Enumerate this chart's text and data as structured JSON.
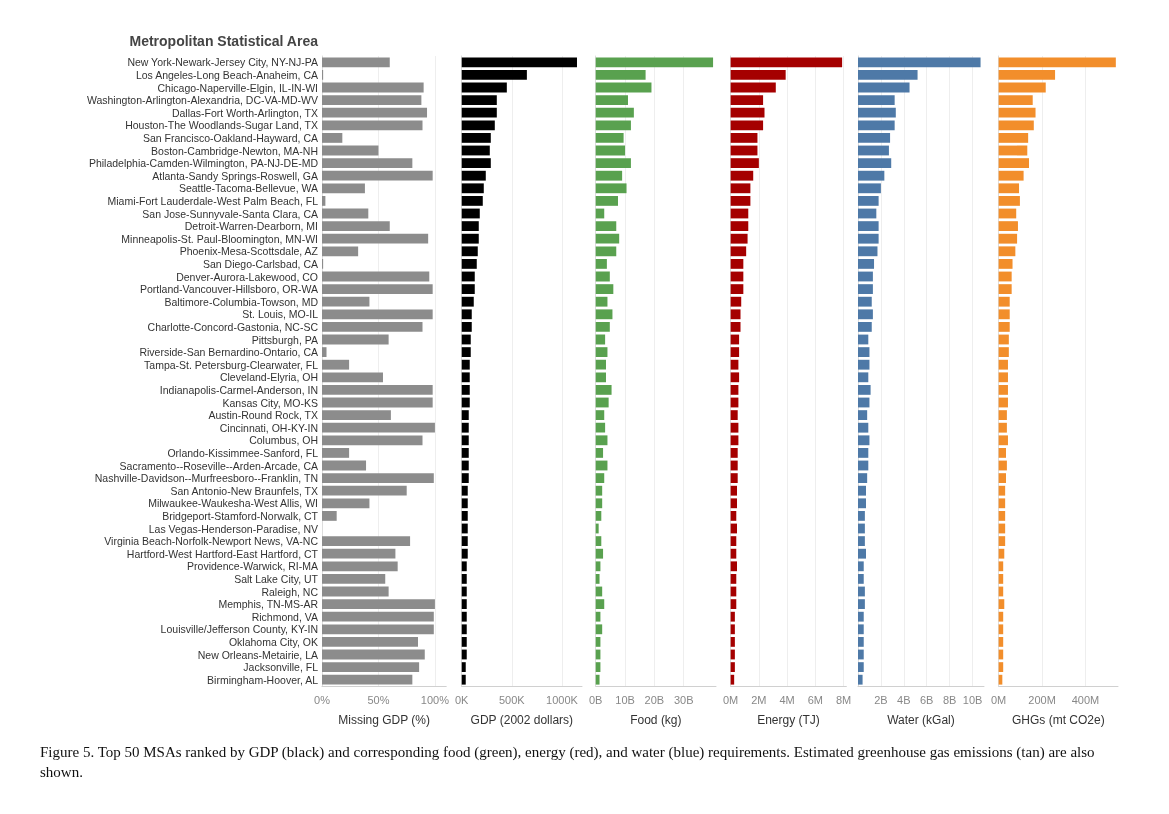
{
  "chart_data": [
    {
      "type": "bar",
      "orientation": "horizontal",
      "ylabel": "Metropolitan Statistical Area",
      "xlabel": "Missing GDP (%)",
      "color": "#8c8c8c",
      "grid": "x",
      "xlim": [
        0,
        110
      ],
      "xticks": [
        {
          "value": 0,
          "label": "0%"
        },
        {
          "value": 50,
          "label": "50%"
        },
        {
          "value": 100,
          "label": "100%"
        }
      ],
      "categories": [
        "New York-Newark-Jersey City, NY-NJ-PA",
        "Los Angeles-Long Beach-Anaheim, CA",
        "Chicago-Naperville-Elgin, IL-IN-WI",
        "Washington-Arlington-Alexandria, DC-VA-MD-WV",
        "Dallas-Fort Worth-Arlington, TX",
        "Houston-The Woodlands-Sugar Land, TX",
        "San Francisco-Oakland-Hayward, CA",
        "Boston-Cambridge-Newton, MA-NH",
        "Philadelphia-Camden-Wilmington, PA-NJ-DE-MD",
        "Atlanta-Sandy Springs-Roswell, GA",
        "Seattle-Tacoma-Bellevue, WA",
        "Miami-Fort Lauderdale-West Palm Beach, FL",
        "San Jose-Sunnyvale-Santa Clara, CA",
        "Detroit-Warren-Dearborn, MI",
        "Minneapolis-St. Paul-Bloomington, MN-WI",
        "Phoenix-Mesa-Scottsdale, AZ",
        "San Diego-Carlsbad, CA",
        "Denver-Aurora-Lakewood, CO",
        "Portland-Vancouver-Hillsboro, OR-WA",
        "Baltimore-Columbia-Towson, MD",
        "St. Louis, MO-IL",
        "Charlotte-Concord-Gastonia, NC-SC",
        "Pittsburgh, PA",
        "Riverside-San Bernardino-Ontario, CA",
        "Tampa-St. Petersburg-Clearwater, FL",
        "Cleveland-Elyria, OH",
        "Indianapolis-Carmel-Anderson, IN",
        "Kansas City, MO-KS",
        "Austin-Round Rock, TX",
        "Cincinnati, OH-KY-IN",
        "Columbus, OH",
        "Orlando-Kissimmee-Sanford, FL",
        "Sacramento--Roseville--Arden-Arcade, CA",
        "Nashville-Davidson--Murfreesboro--Franklin, TN",
        "San Antonio-New Braunfels, TX",
        "Milwaukee-Waukesha-West Allis, WI",
        "Bridgeport-Stamford-Norwalk, CT",
        "Las Vegas-Henderson-Paradise, NV",
        "Virginia Beach-Norfolk-Newport News, VA-NC",
        "Hartford-West Hartford-East Hartford, CT",
        "Providence-Warwick, RI-MA",
        "Salt Lake City, UT",
        "Raleigh, NC",
        "Memphis, TN-MS-AR",
        "Richmond, VA",
        "Louisville/Jefferson County, KY-IN",
        "Oklahoma City, OK",
        "New Orleans-Metairie, LA",
        "Jacksonville, FL",
        "Birmingham-Hoover, AL"
      ],
      "values": [
        60,
        1,
        90,
        88,
        93,
        89,
        18,
        50,
        80,
        98,
        38,
        3,
        41,
        60,
        94,
        32,
        1,
        95,
        98,
        42,
        98,
        89,
        59,
        4,
        24,
        54,
        98,
        98,
        61,
        100,
        89,
        24,
        39,
        99,
        75,
        42,
        13,
        0,
        78,
        65,
        67,
        56,
        59,
        100,
        99,
        99,
        85,
        91,
        86,
        80
      ],
      "annotations": [
        "Figure 5. Top 50 MSAs ranked by GDP (black) and corresponding food (green), energy (red), and water (blue) requirements. Estimated greenhouse gas emissions (tan) are also shown."
      ]
    },
    {
      "type": "bar",
      "orientation": "horizontal",
      "tick_labels": "x",
      "xlabel": "GDP (2002 dollars)",
      "color": "#000000",
      "grid": "x",
      "xlim": [
        0,
        1200
      ],
      "xticks": [
        {
          "value": 0,
          "label": "0K"
        },
        {
          "value": 500,
          "label": "500K"
        },
        {
          "value": 1000,
          "label": "1000K"
        }
      ],
      "categories": [
        null,
        null,
        null,
        null,
        null,
        null,
        null,
        null,
        null,
        null,
        null,
        null,
        null,
        null,
        null,
        null,
        null,
        null,
        null,
        null,
        null,
        null,
        null,
        null,
        null,
        null,
        null,
        null,
        null,
        null,
        null,
        null,
        null,
        null,
        null,
        null,
        null,
        null,
        null,
        null,
        null,
        null,
        null,
        null,
        null,
        null,
        null,
        null,
        null,
        null
      ],
      "values": [
        1150,
        650,
        450,
        350,
        350,
        330,
        290,
        280,
        290,
        240,
        220,
        210,
        180,
        170,
        170,
        160,
        150,
        130,
        130,
        120,
        100,
        100,
        90,
        90,
        80,
        80,
        80,
        80,
        70,
        70,
        70,
        70,
        70,
        70,
        60,
        60,
        60,
        60,
        60,
        60,
        50,
        50,
        50,
        50,
        50,
        50,
        50,
        50,
        40,
        40
      ]
    },
    {
      "type": "bar",
      "orientation": "horizontal",
      "tick_labels": "x",
      "xlabel": "Food (kg)",
      "color": "#59a14f",
      "grid": "x",
      "xlim": [
        0,
        41
      ],
      "xticks": [
        {
          "value": 0,
          "label": "0B"
        },
        {
          "value": 10,
          "label": "10B"
        },
        {
          "value": 20,
          "label": "20B"
        },
        {
          "value": 30,
          "label": "30B"
        }
      ],
      "categories": [
        null,
        null,
        null,
        null,
        null,
        null,
        null,
        null,
        null,
        null,
        null,
        null,
        null,
        null,
        null,
        null,
        null,
        null,
        null,
        null,
        null,
        null,
        null,
        null,
        null,
        null,
        null,
        null,
        null,
        null,
        null,
        null,
        null,
        null,
        null,
        null,
        null,
        null,
        null,
        null,
        null,
        null,
        null,
        null,
        null,
        null,
        null,
        null,
        null,
        null
      ],
      "values": [
        40,
        17,
        19,
        11,
        13,
        12,
        9.5,
        10,
        12,
        9,
        10.5,
        7.6,
        2.9,
        7,
        8,
        7,
        3.8,
        4.8,
        6,
        4,
        5.7,
        4.8,
        3.2,
        4,
        3.5,
        3.5,
        5.4,
        4.4,
        2.9,
        3.2,
        4,
        2.5,
        4,
        2.9,
        2.2,
        2.2,
        1.9,
        1,
        1.9,
        2.5,
        1.6,
        1.3,
        2.2,
        2.9,
        1.6,
        2.2,
        1.6,
        1.6,
        1.6,
        1.3
      ]
    },
    {
      "type": "bar",
      "orientation": "horizontal",
      "tick_labels": "x",
      "xlabel": "Energy (TJ)",
      "color": "#a50000",
      "grid": "x",
      "xlim": [
        0,
        8.2
      ],
      "xticks": [
        {
          "value": 0,
          "label": "0M"
        },
        {
          "value": 2,
          "label": "2M"
        },
        {
          "value": 4,
          "label": "4M"
        },
        {
          "value": 6,
          "label": "6M"
        },
        {
          "value": 8,
          "label": "8M"
        }
      ],
      "categories": [
        null,
        null,
        null,
        null,
        null,
        null,
        null,
        null,
        null,
        null,
        null,
        null,
        null,
        null,
        null,
        null,
        null,
        null,
        null,
        null,
        null,
        null,
        null,
        null,
        null,
        null,
        null,
        null,
        null,
        null,
        null,
        null,
        null,
        null,
        null,
        null,
        null,
        null,
        null,
        null,
        null,
        null,
        null,
        null,
        null,
        null,
        null,
        null,
        null,
        null
      ],
      "values": [
        7.9,
        3.9,
        3.2,
        2.3,
        2.4,
        2.3,
        1.9,
        1.9,
        2.0,
        1.6,
        1.4,
        1.4,
        1.25,
        1.25,
        1.2,
        1.1,
        0.9,
        0.9,
        0.9,
        0.75,
        0.7,
        0.7,
        0.6,
        0.6,
        0.55,
        0.6,
        0.55,
        0.55,
        0.5,
        0.55,
        0.55,
        0.5,
        0.5,
        0.5,
        0.45,
        0.45,
        0.4,
        0.45,
        0.4,
        0.4,
        0.45,
        0.4,
        0.4,
        0.4,
        0.3,
        0.3,
        0.3,
        0.3,
        0.3,
        0.25
      ]
    },
    {
      "type": "bar",
      "orientation": "horizontal",
      "tick_labels": "x",
      "xlabel": "Water (kGal)",
      "color": "#4e79a7",
      "grid": "x",
      "xlim": [
        0,
        11
      ],
      "xticks": [
        {
          "value": 2,
          "label": "2B"
        },
        {
          "value": 4,
          "label": "4B"
        },
        {
          "value": 6,
          "label": "6B"
        },
        {
          "value": 8,
          "label": "8B"
        },
        {
          "value": 10,
          "label": "10B"
        }
      ],
      "categories": [
        null,
        null,
        null,
        null,
        null,
        null,
        null,
        null,
        null,
        null,
        null,
        null,
        null,
        null,
        null,
        null,
        null,
        null,
        null,
        null,
        null,
        null,
        null,
        null,
        null,
        null,
        null,
        null,
        null,
        null,
        null,
        null,
        null,
        null,
        null,
        null,
        null,
        null,
        null,
        null,
        null,
        null,
        null,
        null,
        null,
        null,
        null,
        null,
        null,
        null
      ],
      "values": [
        10.7,
        5.2,
        4.5,
        3.2,
        3.3,
        3.2,
        2.8,
        2.7,
        2.9,
        2.3,
        2.0,
        1.8,
        1.6,
        1.8,
        1.8,
        1.7,
        1.4,
        1.3,
        1.3,
        1.2,
        1.3,
        1.2,
        0.9,
        1.0,
        1.0,
        0.9,
        1.1,
        1.0,
        0.8,
        0.9,
        1.0,
        0.9,
        0.9,
        0.8,
        0.7,
        0.7,
        0.6,
        0.6,
        0.6,
        0.7,
        0.5,
        0.5,
        0.6,
        0.6,
        0.5,
        0.5,
        0.5,
        0.5,
        0.5,
        0.4
      ]
    },
    {
      "type": "bar",
      "orientation": "horizontal",
      "tick_labels": "x",
      "xlabel": "GHGs (mt CO2e)",
      "color": "#f28e2b",
      "grid": "x",
      "xlim": [
        0,
        550
      ],
      "xticks": [
        {
          "value": 0,
          "label": "0M"
        },
        {
          "value": 200,
          "label": "200M"
        },
        {
          "value": 400,
          "label": "400M"
        }
      ],
      "categories": [
        null,
        null,
        null,
        null,
        null,
        null,
        null,
        null,
        null,
        null,
        null,
        null,
        null,
        null,
        null,
        null,
        null,
        null,
        null,
        null,
        null,
        null,
        null,
        null,
        null,
        null,
        null,
        null,
        null,
        null,
        null,
        null,
        null,
        null,
        null,
        null,
        null,
        null,
        null,
        null,
        null,
        null,
        null,
        null,
        null,
        null,
        null,
        null,
        null,
        null
      ],
      "values": [
        540,
        260,
        217,
        157,
        170,
        162,
        136,
        132,
        140,
        115,
        94,
        98,
        81,
        89,
        85,
        77,
        64,
        60,
        60,
        51,
        51,
        51,
        47,
        47,
        43,
        43,
        43,
        43,
        38,
        38,
        43,
        34,
        38,
        34,
        30,
        30,
        30,
        30,
        30,
        26,
        21,
        21,
        21,
        26,
        21,
        21,
        21,
        21,
        21,
        17
      ]
    }
  ]
}
